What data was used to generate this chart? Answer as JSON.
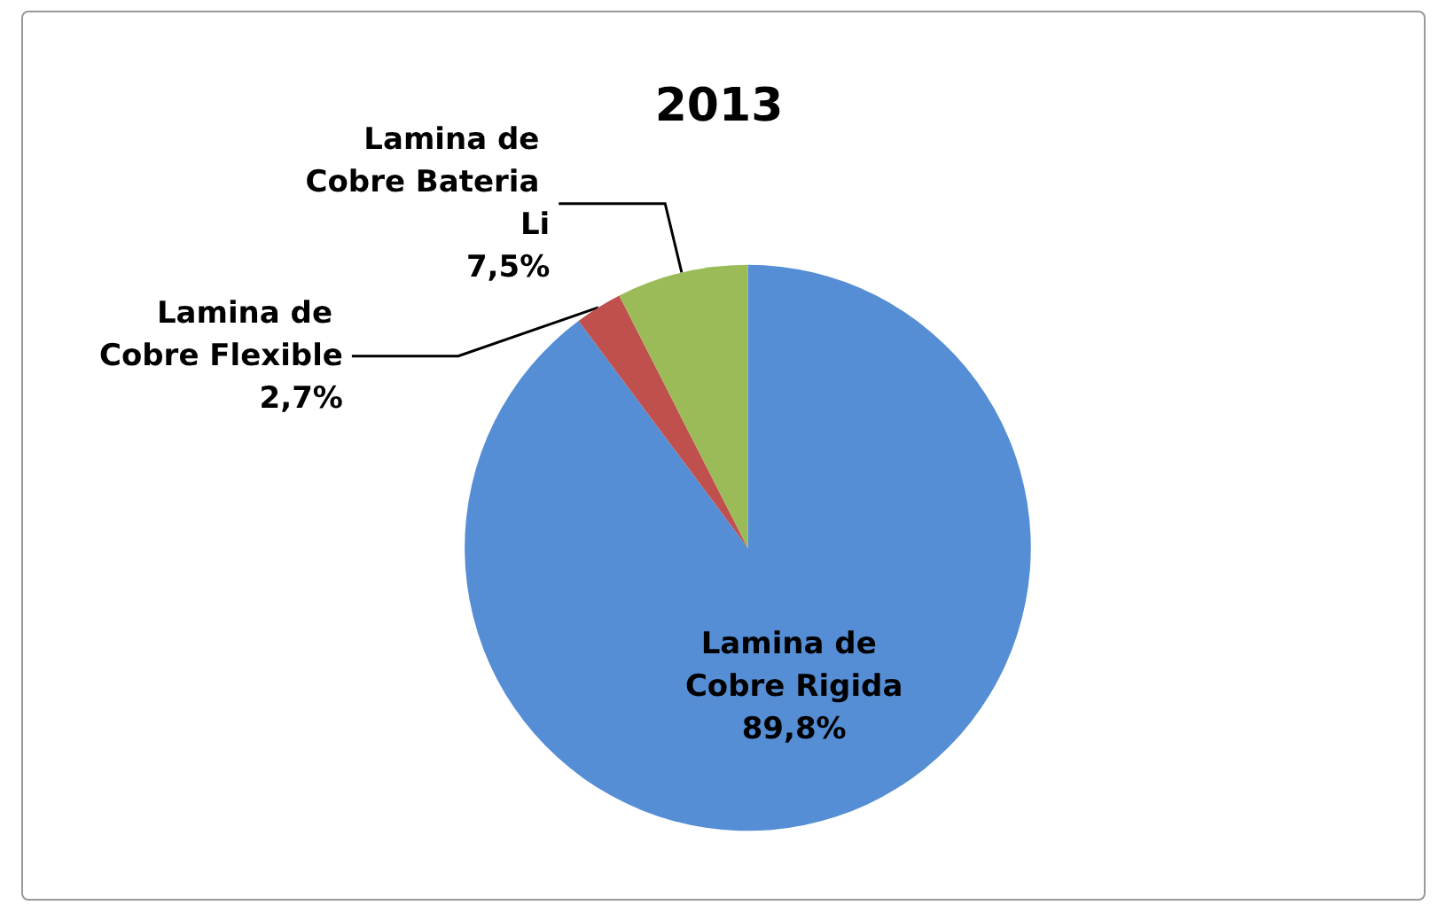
{
  "chart_data": {
    "type": "pie",
    "title": "2013",
    "categories": [
      "Lamina de Cobre Rigida",
      "Lamina de Cobre Flexible",
      "Lamina de Cobre Bateria Li"
    ],
    "values": [
      89.8,
      2.7,
      7.5
    ],
    "colors": [
      "#558ed5",
      "#c0504d",
      "#9bbb59"
    ],
    "value_labels": [
      "89,8%",
      "2,7%",
      "7,5%"
    ],
    "legend": false
  }
}
